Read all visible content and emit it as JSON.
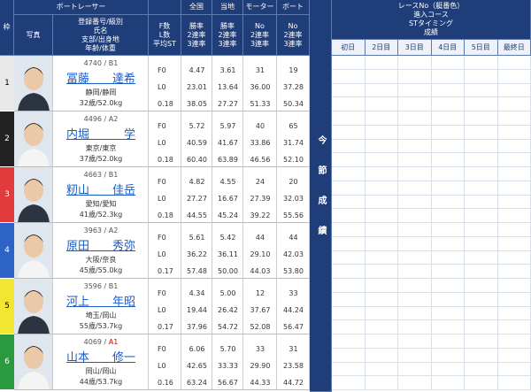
{
  "header": {
    "frame": "枠",
    "racer": "ボートレーサー",
    "photo": "写真",
    "info_lines": [
      "登録番号/級別",
      "氏名",
      "支部/出身地",
      "年齢/体重"
    ],
    "fl_lines": [
      "F数",
      "L数",
      "平均ST"
    ],
    "national": "全国",
    "local": "当地",
    "motor": "モーター",
    "boat": "ボート",
    "rate_lines": [
      "勝率",
      "2連率",
      "3連率"
    ],
    "no_lines": [
      "No",
      "2連率",
      "3連率"
    ],
    "current_series": "今節成績",
    "results_lines": [
      "レースNo（艇番色）",
      "進入コース",
      "STタイミング",
      "成績"
    ],
    "days": [
      "初日",
      "2日目",
      "3日目",
      "4日目",
      "5日目",
      "最終日"
    ]
  },
  "racers": [
    {
      "frame": "1",
      "reg": "4740 /",
      "class": "B1",
      "name": "冨藤　　達希",
      "home": "静岡/静岡",
      "age_weight": "32歳/52.0kg",
      "f": "F0",
      "l": "L0",
      "st": "0.18",
      "national": [
        "4.47",
        "23.01",
        "38.05"
      ],
      "local": [
        "3.61",
        "13.64",
        "27.27"
      ],
      "motor": [
        "31",
        "36.00",
        "51.33"
      ],
      "boat": [
        "19",
        "37.28",
        "50.34"
      ]
    },
    {
      "frame": "2",
      "reg": "4496 /",
      "class": "A2",
      "name": "内堀　　　学",
      "home": "東京/東京",
      "age_weight": "37歳/52.0kg",
      "f": "F0",
      "l": "L0",
      "st": "0.18",
      "national": [
        "5.72",
        "40.59",
        "60.40"
      ],
      "local": [
        "5.97",
        "41.67",
        "63.89"
      ],
      "motor": [
        "40",
        "33.86",
        "46.56"
      ],
      "boat": [
        "65",
        "31.74",
        "52.10"
      ]
    },
    {
      "frame": "3",
      "reg": "4663 /",
      "class": "B1",
      "name": "籾山　　佳岳",
      "home": "愛知/愛知",
      "age_weight": "41歳/52.3kg",
      "f": "F0",
      "l": "L0",
      "st": "0.18",
      "national": [
        "4.82",
        "27.27",
        "44.55"
      ],
      "local": [
        "4.55",
        "16.67",
        "45.24"
      ],
      "motor": [
        "24",
        "27.39",
        "39.22"
      ],
      "boat": [
        "20",
        "32.03",
        "55.56"
      ]
    },
    {
      "frame": "4",
      "reg": "3963 /",
      "class": "A2",
      "name": "原田　　秀弥",
      "home": "大阪/奈良",
      "age_weight": "45歳/55.0kg",
      "f": "F0",
      "l": "L0",
      "st": "0.17",
      "national": [
        "5.61",
        "36.22",
        "57.48"
      ],
      "local": [
        "5.42",
        "36.11",
        "50.00"
      ],
      "motor": [
        "44",
        "29.10",
        "44.03"
      ],
      "boat": [
        "44",
        "42.03",
        "53.80"
      ]
    },
    {
      "frame": "5",
      "reg": "3596 /",
      "class": "B1",
      "name": "河上　　年昭",
      "home": "埼玉/岡山",
      "age_weight": "55歳/53.7kg",
      "f": "F0",
      "l": "L0",
      "st": "0.17",
      "national": [
        "4.34",
        "19.44",
        "37.96"
      ],
      "local": [
        "5.00",
        "26.42",
        "54.72"
      ],
      "motor": [
        "12",
        "37.67",
        "52.08"
      ],
      "boat": [
        "33",
        "44.24",
        "56.47"
      ]
    },
    {
      "frame": "6",
      "reg": "4069 /",
      "class": "A1",
      "name": "山本　　修一",
      "home": "岡山/岡山",
      "age_weight": "44歳/53.7kg",
      "f": "F0",
      "l": "L0",
      "st": "0.16",
      "national": [
        "6.06",
        "42.65",
        "63.24"
      ],
      "local": [
        "5.70",
        "33.33",
        "56.67"
      ],
      "motor": [
        "33",
        "29.90",
        "44.33"
      ],
      "boat": [
        "31",
        "23.58",
        "44.72"
      ]
    }
  ]
}
